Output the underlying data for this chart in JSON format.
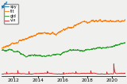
{
  "series": [
    "spy",
    "tlt",
    "gld",
    "vix"
  ],
  "colors": [
    "#1f77b4",
    "#ff7f0e",
    "#2ca02c",
    "#d62728"
  ],
  "legend_loc": "upper left",
  "figsize": [
    1.6,
    1.06
  ],
  "dpi": 100,
  "background_color": "#f0f0ee",
  "linewidth": 0.65,
  "spy_scale": 3.8,
  "tlt_scale": 1.55,
  "gld_scale": 1.45,
  "vix_scale": 0.35,
  "ylim": [
    0.0,
    4.2
  ]
}
